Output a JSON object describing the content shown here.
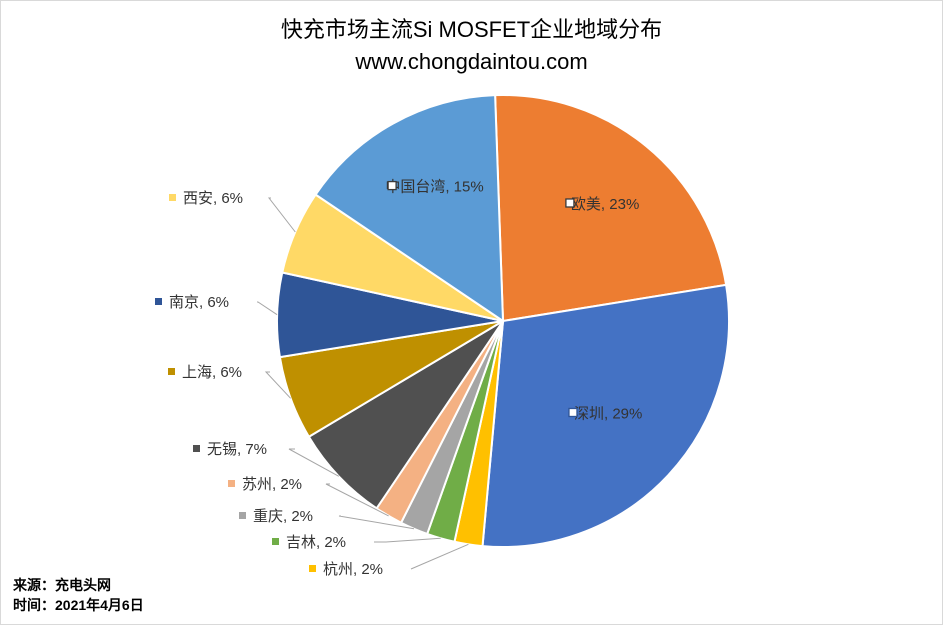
{
  "title": "快充市场主流Si MOSFET企业地域分布",
  "subtitle": "www.chongdaintou.com",
  "footer": {
    "source": "来源：充电头网",
    "time": "时间：2021年4月6日"
  },
  "chart_data": {
    "type": "pie",
    "start_angle_deg": 92,
    "direction": "clockwise",
    "slices": [
      {
        "label": "欧美",
        "value": 23,
        "display": "欧美, 23%",
        "color": "#ED7D31",
        "label_inside": true
      },
      {
        "label": "深圳",
        "value": 29,
        "display": "深圳, 29%",
        "color": "#4472C4",
        "label_inside": true
      },
      {
        "label": "杭州",
        "value": 2,
        "display": "杭州, 2%",
        "color": "#FFC000",
        "label_inside": false
      },
      {
        "label": "吉林",
        "value": 2,
        "display": "吉林, 2%",
        "color": "#70AD47",
        "label_inside": false
      },
      {
        "label": "重庆",
        "value": 2,
        "display": "重庆, 2%",
        "color": "#A5A5A5",
        "label_inside": false
      },
      {
        "label": "苏州",
        "value": 2,
        "display": "苏州, 2%",
        "color": "#F4B183",
        "label_inside": false
      },
      {
        "label": "无锡",
        "value": 7,
        "display": "无锡, 7%",
        "color": "#505050",
        "label_inside": false
      },
      {
        "label": "上海",
        "value": 6,
        "display": "上海, 6%",
        "color": "#BF9000",
        "label_inside": false
      },
      {
        "label": "南京",
        "value": 6,
        "display": "南京, 6%",
        "color": "#2F5597",
        "label_inside": false
      },
      {
        "label": "西安",
        "value": 6,
        "display": "西安, 6%",
        "color": "#FFD966",
        "label_inside": false
      },
      {
        "label": "中国台湾",
        "value": 15,
        "display": "中国台湾, 15%",
        "color": "#5B9BD5",
        "label_inside": true
      }
    ]
  }
}
